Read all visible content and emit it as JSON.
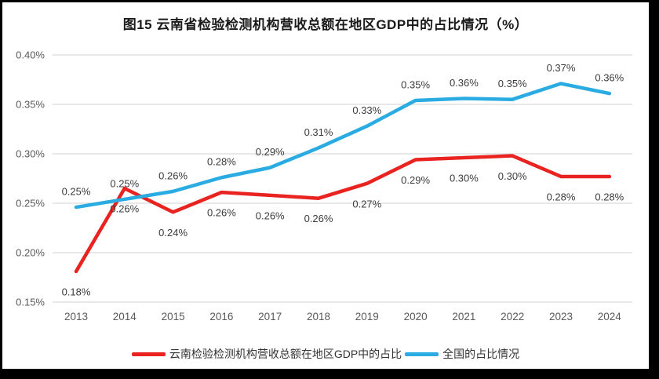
{
  "chart_data": {
    "type": "line",
    "title": "图15 云南省检验检测机构营收总额在地区GDP中的占比情况（%）",
    "categories": [
      "2013",
      "2014",
      "2015",
      "2016",
      "2017",
      "2018",
      "2019",
      "2020",
      "2021",
      "2022",
      "2023",
      "2024"
    ],
    "series": [
      {
        "name": "云南检验检测机构营收总额在地区GDP中的占比",
        "color": "#e82320",
        "values": [
          0.18,
          0.26,
          0.24,
          0.26,
          0.26,
          0.26,
          0.27,
          0.29,
          0.3,
          0.3,
          0.28,
          0.28
        ],
        "labels": [
          "0.18%",
          "0.26%",
          "0.24%",
          "0.26%",
          "0.26%",
          "0.26%",
          "0.27%",
          "0.29%",
          "0.30%",
          "0.30%",
          "0.28%",
          "0.28%"
        ],
        "plot_values": [
          0.181,
          0.265,
          0.241,
          0.261,
          0.258,
          0.255,
          0.27,
          0.294,
          0.296,
          0.298,
          0.277,
          0.277
        ],
        "label_position": "below"
      },
      {
        "name": "全国的占比情况",
        "color": "#2aabe2",
        "values": [
          0.25,
          0.25,
          0.26,
          0.28,
          0.29,
          0.31,
          0.33,
          0.35,
          0.36,
          0.35,
          0.37,
          0.36
        ],
        "labels": [
          "0.25%",
          "0.25%",
          "0.26%",
          "0.28%",
          "0.29%",
          "0.31%",
          "0.33%",
          "0.35%",
          "0.36%",
          "0.35%",
          "0.37%",
          "0.36%"
        ],
        "plot_values": [
          0.246,
          0.254,
          0.262,
          0.276,
          0.286,
          0.306,
          0.328,
          0.354,
          0.356,
          0.355,
          0.371,
          0.361
        ],
        "label_position": "above"
      }
    ],
    "y_axis": {
      "ticks": [
        "0.40%",
        "0.35%",
        "0.30%",
        "0.25%",
        "0.20%",
        "0.15%"
      ],
      "min": 0.15,
      "max": 0.4,
      "step": 0.05,
      "grid": true
    },
    "legend_position": "bottom",
    "colors": {
      "gridline": "#d9d9d9",
      "axis_text": "#595959",
      "data_label_text": "#3b3b3b",
      "frame_border": "#000000"
    }
  }
}
